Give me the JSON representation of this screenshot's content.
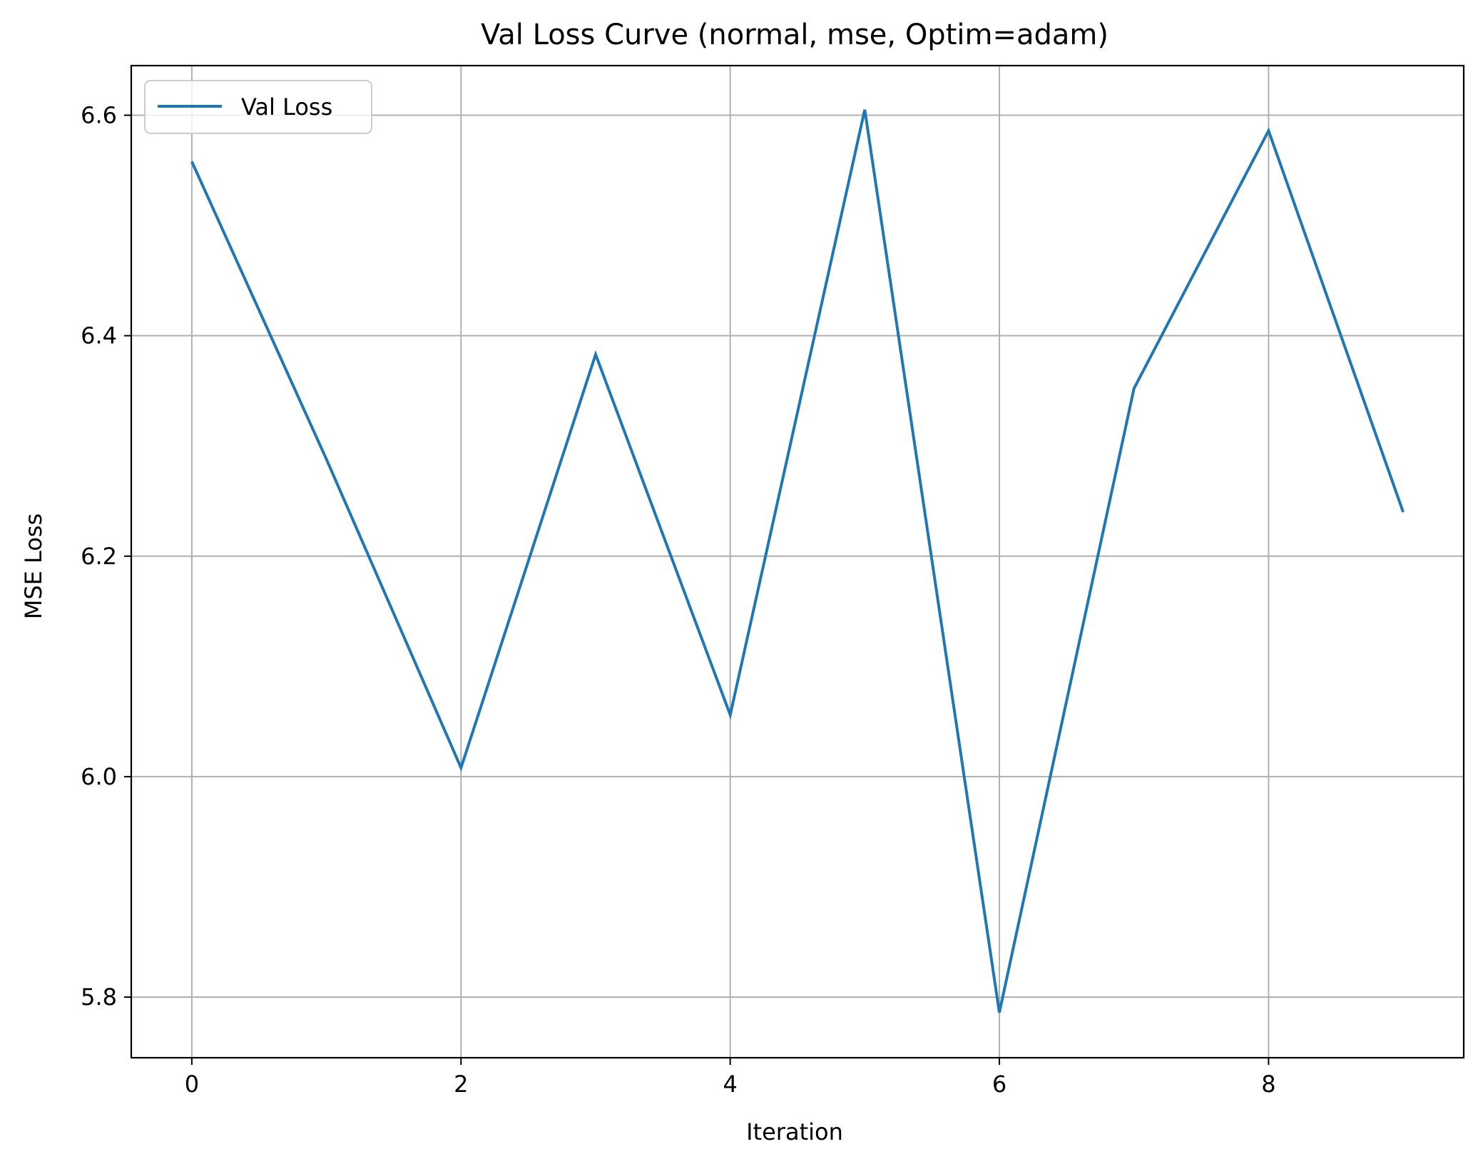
{
  "chart_data": {
    "type": "line",
    "title": "Val Loss Curve (normal, mse, Optim=adam)",
    "xlabel": "Iteration",
    "ylabel": "MSE Loss",
    "xlim": [
      -0.45,
      9.45
    ],
    "ylim": [
      5.745,
      6.645
    ],
    "xticks": [
      0,
      2,
      4,
      6,
      8
    ],
    "xtick_labels": [
      "0",
      "2",
      "4",
      "6",
      "8"
    ],
    "yticks": [
      5.8,
      6.0,
      6.2,
      6.4,
      6.6
    ],
    "ytick_labels": [
      "5.8",
      "6.0",
      "6.2",
      "6.4",
      "6.6"
    ],
    "grid": true,
    "legend_position": "upper-left",
    "series": [
      {
        "name": "Val Loss",
        "color": "#1f77b4",
        "x": [
          0,
          1,
          2,
          3,
          4,
          5,
          6,
          7,
          8,
          9
        ],
        "y": [
          6.558,
          6.288,
          6.008,
          6.383,
          6.056,
          6.605,
          5.786,
          6.352,
          6.586,
          6.24
        ]
      }
    ]
  }
}
